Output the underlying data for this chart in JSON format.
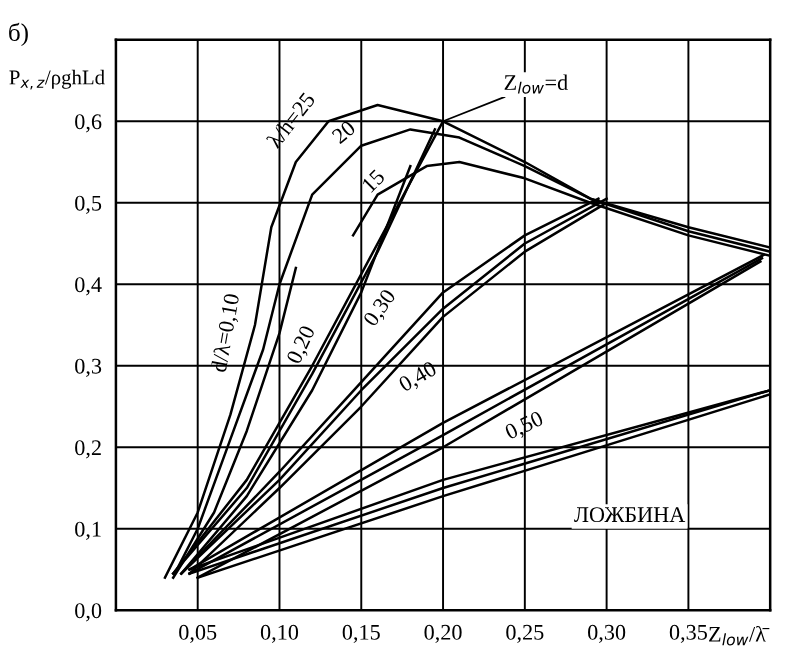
{
  "chart_data": {
    "type": "line",
    "title": "б)",
    "xlabel": "Z$_{low}$/λ̄",
    "ylabel": "P$_{x,z}$/ρghLd",
    "xlim": [
      0,
      0.4
    ],
    "ylim": [
      0,
      0.7
    ],
    "xticks": [
      {
        "value": 0.05,
        "label": "0,05"
      },
      {
        "value": 0.1,
        "label": "0,10"
      },
      {
        "value": 0.15,
        "label": "0,15"
      },
      {
        "value": 0.2,
        "label": "0,20"
      },
      {
        "value": 0.25,
        "label": "0,25"
      },
      {
        "value": 0.3,
        "label": "0,30"
      },
      {
        "value": 0.35,
        "label": "0,35"
      },
      {
        "value": 0.4,
        "label": null
      }
    ],
    "yticks": [
      {
        "value": 0,
        "label": "0,0"
      },
      {
        "value": 0.1,
        "label": "0,1"
      },
      {
        "value": 0.2,
        "label": "0,2"
      },
      {
        "value": 0.3,
        "label": "0,3"
      },
      {
        "value": 0.4,
        "label": "0,4"
      },
      {
        "value": 0.5,
        "label": "0,5"
      },
      {
        "value": 0.6,
        "label": "0,6"
      },
      {
        "value": 0.7,
        "label": null
      }
    ],
    "grid": true,
    "legend": false,
    "marker": "none",
    "line_style": "solid",
    "series": [
      {
        "color": "#000000",
        "x": [
          0.03,
          0.05,
          0.07,
          0.085,
          0.095,
          0.11,
          0.13,
          0.16,
          0.2,
          0.25,
          0.29,
          0.35,
          0.4
        ],
        "values": [
          0.04,
          0.12,
          0.24,
          0.35,
          0.47,
          0.55,
          0.6,
          0.62,
          0.6,
          0.55,
          0.505,
          0.47,
          0.445
        ]
      },
      {
        "color": "#000000",
        "x": [
          0.036,
          0.05,
          0.07,
          0.09,
          0.1,
          0.12,
          0.15,
          0.18,
          0.21,
          0.25,
          0.29,
          0.35,
          0.4
        ],
        "values": [
          0.045,
          0.1,
          0.21,
          0.32,
          0.4,
          0.51,
          0.57,
          0.59,
          0.58,
          0.545,
          0.505,
          0.465,
          0.44
        ]
      },
      {
        "color": "#000000",
        "x": [
          0.145,
          0.16,
          0.19,
          0.21,
          0.25,
          0.29,
          0.35,
          0.4
        ],
        "values": [
          0.46,
          0.51,
          0.545,
          0.55,
          0.53,
          0.5,
          0.46,
          0.435
        ]
      },
      {
        "color": "#000000",
        "x": [
          0.035,
          0.06,
          0.08,
          0.1,
          0.11
        ],
        "values": [
          0.04,
          0.12,
          0.22,
          0.34,
          0.42
        ]
      },
      {
        "color": "#000000",
        "x": [
          0.035,
          0.08,
          0.12,
          0.16,
          0.2
        ],
        "values": [
          0.045,
          0.16,
          0.3,
          0.45,
          0.6
        ]
      },
      {
        "color": "#000000",
        "x": [
          0.035,
          0.08,
          0.12,
          0.16,
          0.195
        ],
        "values": [
          0.045,
          0.15,
          0.29,
          0.44,
          0.59
        ]
      },
      {
        "color": "#000000",
        "x": [
          0.04,
          0.08,
          0.12,
          0.15,
          0.18
        ],
        "values": [
          0.045,
          0.14,
          0.27,
          0.39,
          0.545
        ]
      },
      {
        "color": "#000000",
        "x": [
          0.04,
          0.1,
          0.15,
          0.2,
          0.25,
          0.295
        ],
        "values": [
          0.045,
          0.17,
          0.28,
          0.39,
          0.46,
          0.505
        ]
      },
      {
        "color": "#000000",
        "x": [
          0.04,
          0.1,
          0.15,
          0.2,
          0.25,
          0.3
        ],
        "values": [
          0.045,
          0.16,
          0.27,
          0.37,
          0.45,
          0.505
        ]
      },
      {
        "color": "#000000",
        "x": [
          0.045,
          0.1,
          0.15,
          0.2,
          0.25,
          0.3
        ],
        "values": [
          0.045,
          0.15,
          0.25,
          0.36,
          0.44,
          0.5
        ]
      },
      {
        "color": "#000000",
        "x": [
          0.045,
          0.2,
          0.396
        ],
        "values": [
          0.05,
          0.23,
          0.436
        ]
      },
      {
        "color": "#000000",
        "x": [
          0.045,
          0.2,
          0.395
        ],
        "values": [
          0.045,
          0.215,
          0.432
        ]
      },
      {
        "color": "#000000",
        "x": [
          0.05,
          0.2,
          0.394
        ],
        "values": [
          0.04,
          0.2,
          0.428
        ]
      },
      {
        "color": "#000000",
        "x": [
          0.045,
          0.2,
          0.4
        ],
        "values": [
          0.05,
          0.16,
          0.27
        ]
      },
      {
        "color": "#000000",
        "x": [
          0.045,
          0.2,
          0.4
        ],
        "values": [
          0.045,
          0.15,
          0.27
        ]
      },
      {
        "color": "#000000",
        "x": [
          0.05,
          0.2,
          0.4
        ],
        "values": [
          0.04,
          0.14,
          0.265
        ]
      }
    ],
    "annotations": [
      "λ/h=25",
      "20",
      "15",
      "d/λ=0,10",
      "0,20",
      "0,30",
      "0,40",
      "0,50",
      {
        "text": "Z$_{low}$=d",
        "x": 0.2,
        "y": 0.6
      },
      "ЛОЖБИНА"
    ]
  }
}
